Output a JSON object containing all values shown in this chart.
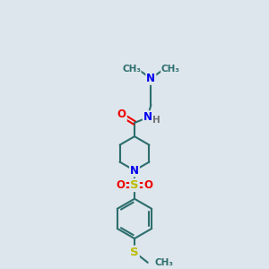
{
  "background_color": "#dde6ec",
  "bond_color": "#2d6e6e",
  "bond_width": 1.5,
  "atom_colors": {
    "N": "#0000ee",
    "O": "#ee0000",
    "S": "#bbbb00",
    "H": "#707070",
    "C": "#2d6e6e"
  },
  "font_size": 8.5,
  "figsize": [
    3.0,
    3.0
  ],
  "dpi": 100,
  "xlim": [
    0,
    10
  ],
  "ylim": [
    0,
    14
  ]
}
